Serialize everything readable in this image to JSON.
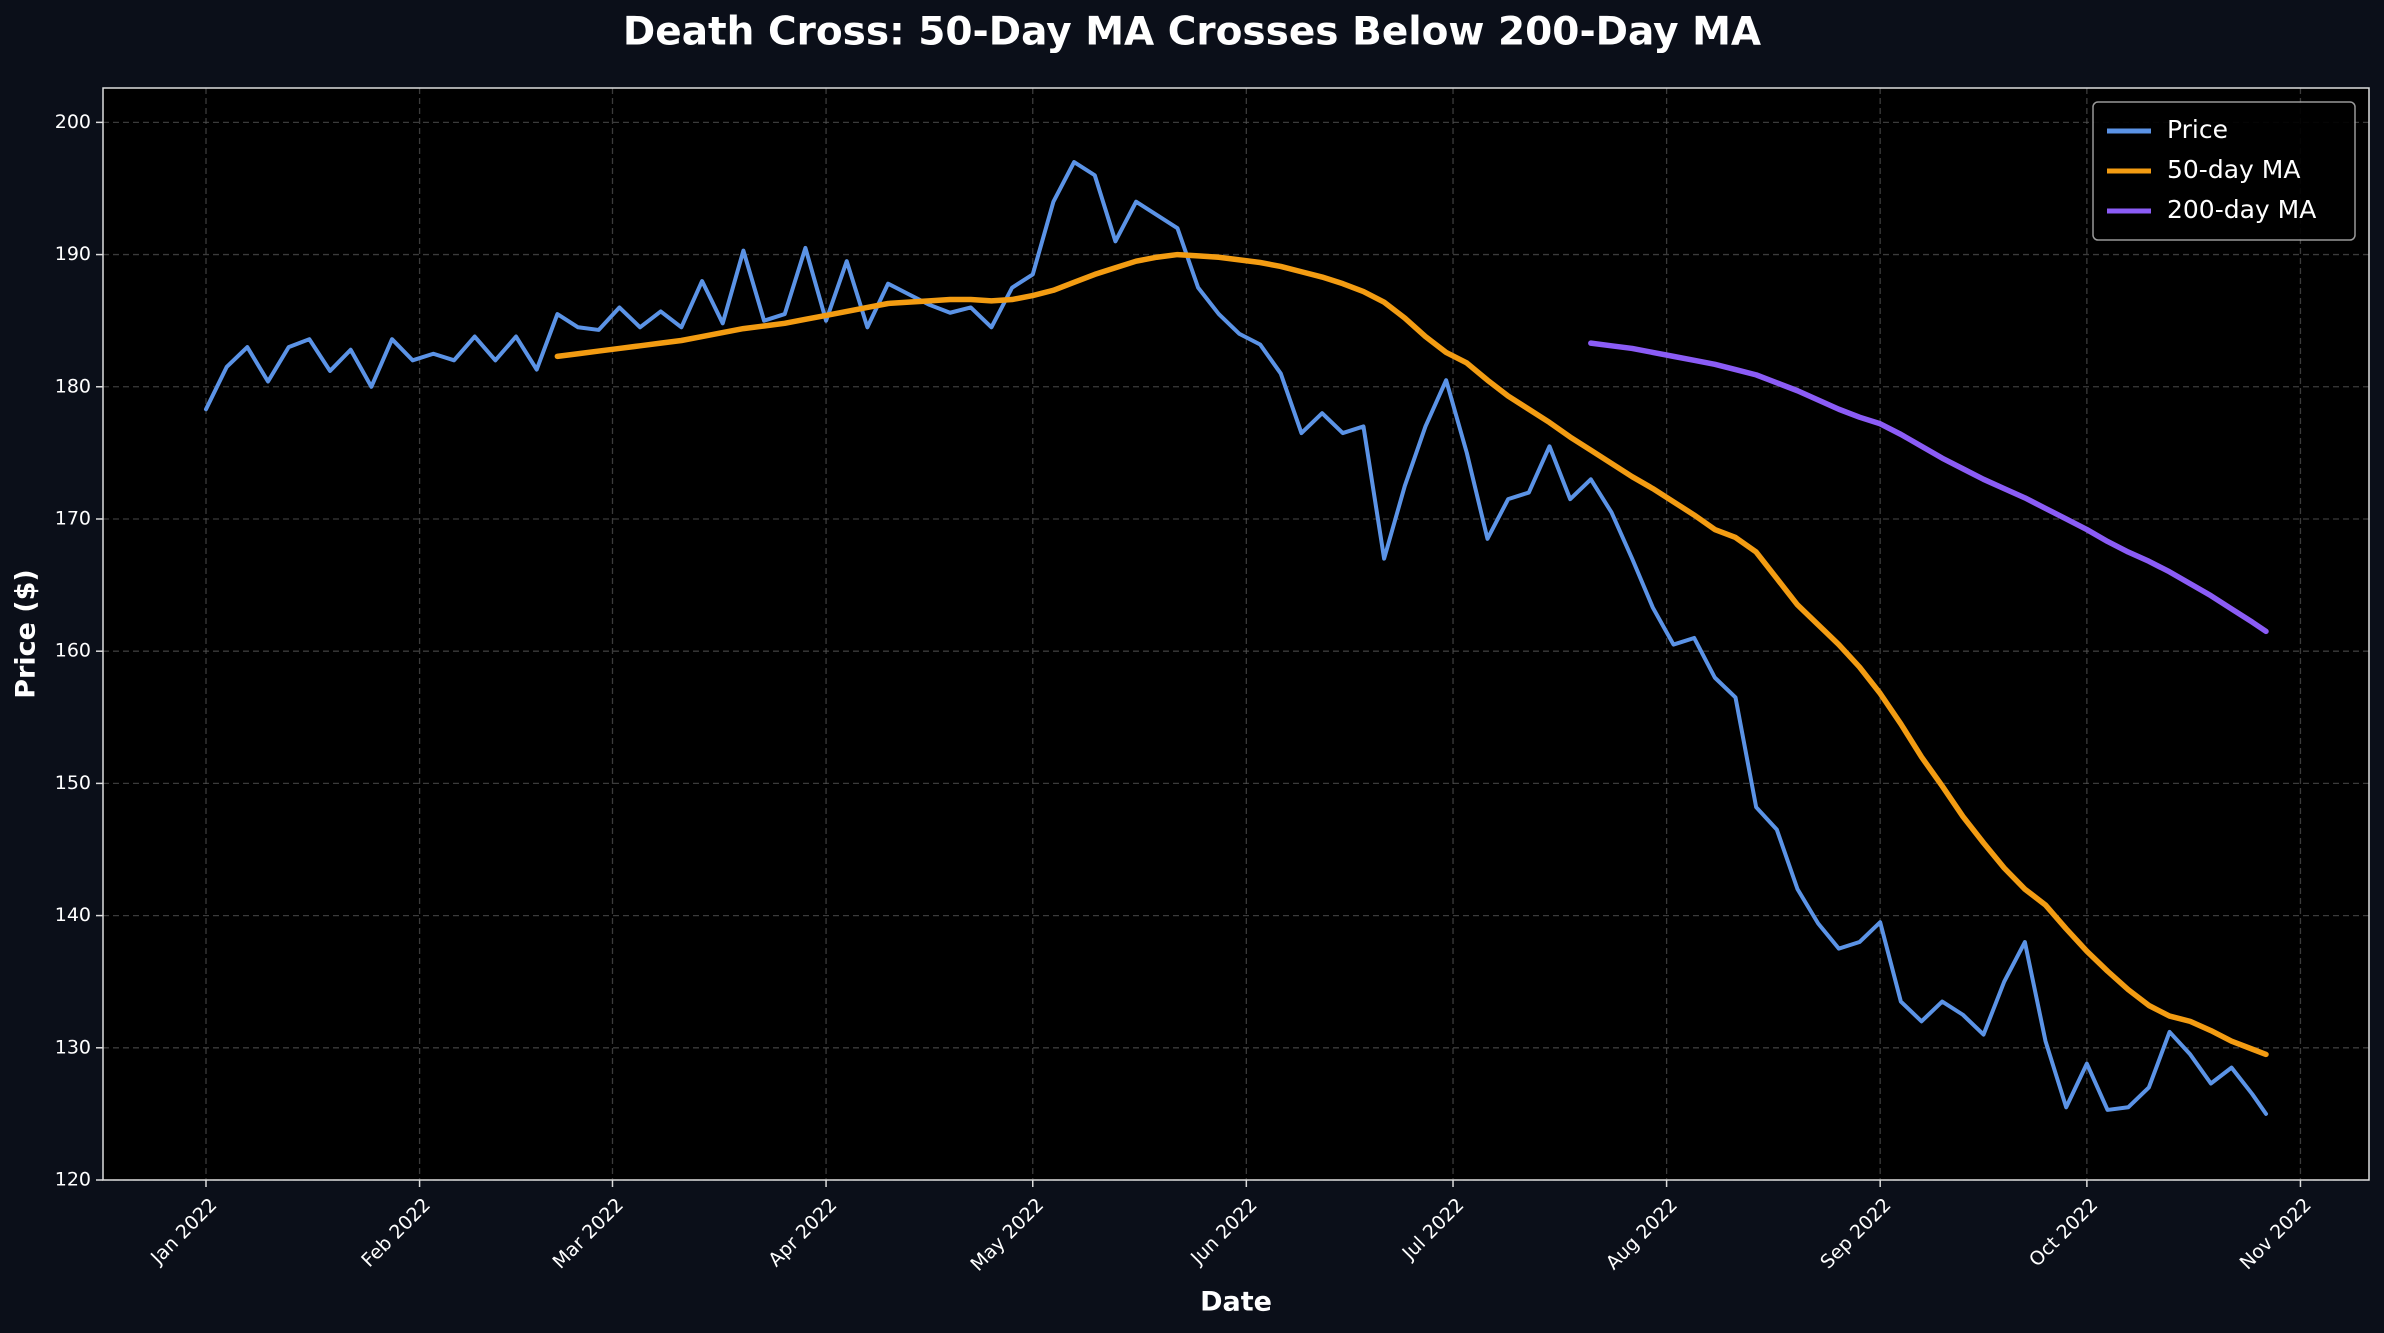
{
  "chart_data": {
    "type": "line",
    "title": "Death Cross: 50-Day MA Crosses Below 200-Day MA",
    "x_label": "Date",
    "y_label": "Price ($)",
    "x": [
      0,
      3,
      6,
      9,
      12,
      15,
      18,
      21,
      24,
      27,
      30,
      33,
      36,
      39,
      42,
      45,
      48,
      51,
      54,
      57,
      60,
      63,
      66,
      69,
      72,
      75,
      78,
      81,
      84,
      87,
      90,
      93,
      96,
      99,
      102,
      105,
      108,
      111,
      114,
      117,
      120,
      123,
      126,
      129,
      132,
      135,
      138,
      141,
      144,
      147,
      150,
      153,
      156,
      159,
      162,
      165,
      168,
      171,
      174,
      177,
      180,
      183,
      186,
      189,
      192,
      195,
      198,
      201,
      204,
      207,
      210,
      213,
      216,
      219,
      222,
      225,
      228,
      231,
      234,
      237,
      240,
      243,
      246,
      249,
      252,
      255,
      258,
      261,
      264,
      267,
      270,
      273,
      276,
      279,
      282,
      285,
      288,
      291,
      294,
      297,
      299
    ],
    "series": [
      {
        "name": "Price",
        "color": "#5b93e6",
        "values": [
          178.3,
          181.5,
          183,
          180.4,
          183.0,
          183.6,
          181.2,
          182.8,
          180.0,
          183.6,
          182.0,
          182.5,
          182.0,
          183.8,
          182,
          183.8,
          181.3,
          185.5,
          184.5,
          184.3,
          186,
          184.5,
          185.7,
          184.5,
          188,
          184.8,
          190.3,
          185,
          185.5,
          190.5,
          185,
          189.5,
          184.5,
          187.8,
          187,
          186.2,
          185.6,
          186,
          184.5,
          187.5,
          188.5,
          194,
          197,
          196,
          191,
          194,
          193,
          192,
          187.5,
          185.5,
          184,
          183.2,
          181,
          176.5,
          178,
          176.5,
          177,
          167,
          172.5,
          177,
          180.5,
          175,
          168.5,
          171.5,
          172,
          175.5,
          171.5,
          173,
          170.5,
          167,
          163.3,
          160.5,
          161,
          158,
          156.5,
          148.2,
          146.5,
          142,
          139.4,
          137.5,
          138,
          139.5,
          133.5,
          132,
          133.5,
          132.5,
          131,
          135,
          138,
          130.5,
          125.5,
          128.8,
          125.3,
          125.5,
          127,
          131.2,
          129.5,
          127.3,
          128.5,
          126.5,
          125
        ]
      },
      {
        "name": "50-day MA",
        "color": "#f39c12",
        "values": [
          null,
          null,
          null,
          null,
          null,
          null,
          null,
          null,
          null,
          null,
          null,
          null,
          null,
          null,
          null,
          null,
          null,
          182.3,
          182.5,
          182.7,
          182.9,
          183.1,
          183.3,
          183.5,
          183.8,
          184.1,
          184.4,
          184.6,
          184.8,
          185.1,
          185.4,
          185.7,
          186.0,
          186.3,
          186.4,
          186.5,
          186.6,
          186.6,
          186.5,
          186.6,
          186.9,
          187.3,
          187.9,
          188.5,
          189.0,
          189.5,
          189.8,
          190.0,
          189.9,
          189.8,
          189.6,
          189.4,
          189.1,
          188.7,
          188.3,
          187.8,
          187.2,
          186.4,
          185.2,
          183.8,
          182.6,
          181.8,
          180.5,
          179.3,
          178.3,
          177.3,
          176.2,
          175.2,
          174.2,
          173.2,
          172.3,
          171.3,
          170.3,
          169.2,
          168.6,
          167.5,
          165.5,
          163.5,
          162.0,
          160.5,
          158.8,
          156.8,
          154.5,
          152.0,
          149.8,
          147.5,
          145.5,
          143.6,
          142.0,
          140.8,
          139.0,
          137.3,
          135.8,
          134.4,
          133.2,
          132.4,
          132.0,
          131.3,
          130.5,
          129.9,
          129.5
        ]
      },
      {
        "name": "200-day MA",
        "color": "#8b5cf6",
        "values": [
          null,
          null,
          null,
          null,
          null,
          null,
          null,
          null,
          null,
          null,
          null,
          null,
          null,
          null,
          null,
          null,
          null,
          null,
          null,
          null,
          null,
          null,
          null,
          null,
          null,
          null,
          null,
          null,
          null,
          null,
          null,
          null,
          null,
          null,
          null,
          null,
          null,
          null,
          null,
          null,
          null,
          null,
          null,
          null,
          null,
          null,
          null,
          null,
          null,
          null,
          null,
          null,
          null,
          null,
          null,
          null,
          null,
          null,
          null,
          null,
          null,
          null,
          null,
          null,
          null,
          null,
          null,
          183.3,
          183.1,
          182.9,
          182.6,
          182.3,
          182.0,
          181.7,
          181.3,
          180.9,
          180.3,
          179.7,
          179.0,
          178.3,
          177.7,
          177.2,
          176.4,
          175.5,
          174.6,
          173.8,
          173.0,
          172.3,
          171.6,
          170.8,
          170.0,
          169.2,
          168.3,
          167.5,
          166.8,
          166.0,
          165.1,
          164.2,
          163.2,
          162.2,
          161.5
        ]
      }
    ],
    "xlim": [
      -14.95,
      313.95
    ],
    "xticks": [
      {
        "value": 0,
        "label": "Jan 2022"
      },
      {
        "value": 31,
        "label": "Feb 2022"
      },
      {
        "value": 59,
        "label": "Mar 2022"
      },
      {
        "value": 90,
        "label": "Apr 2022"
      },
      {
        "value": 120,
        "label": "May 2022"
      },
      {
        "value": 151,
        "label": "Jun 2022"
      },
      {
        "value": 181,
        "label": "Jul 2022"
      },
      {
        "value": 212,
        "label": "Aug 2022"
      },
      {
        "value": 243,
        "label": "Sep 2022"
      },
      {
        "value": 273,
        "label": "Oct 2022"
      },
      {
        "value": 304,
        "label": "Nov 2022"
      }
    ],
    "ylim": [
      120,
      202.6
    ],
    "yticks": [
      120,
      130,
      140,
      150,
      160,
      170,
      180,
      190,
      200
    ],
    "grid": true,
    "legend": "upper right"
  }
}
